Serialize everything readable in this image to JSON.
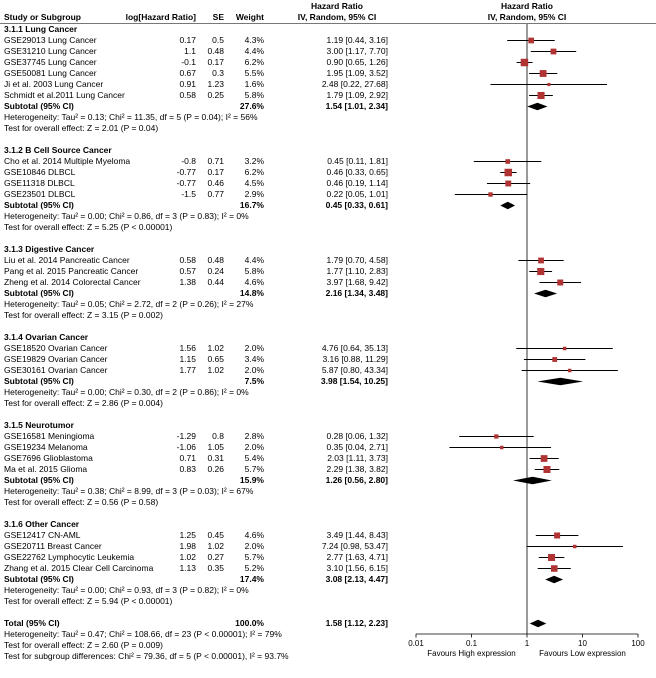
{
  "header": {
    "hazard_ratio": "Hazard Ratio",
    "study": "Study or Subgroup",
    "loghr": "log[Hazard Ratio]",
    "se": "SE",
    "weight": "Weight",
    "iv_random": "IV, Random, 95% CI"
  },
  "colors": {
    "marker": "#B03434",
    "ci_line": "#000000",
    "diamond": "#000000",
    "axis": "#000000"
  },
  "chart_data": {
    "type": "forest",
    "x_scale": "log",
    "xlim": [
      0.01,
      100
    ],
    "x_ticks": [
      "0.01",
      "0.1",
      "1",
      "10",
      "100"
    ],
    "x_tick_values": [
      0.01,
      0.1,
      1,
      10,
      100
    ],
    "favours_left": "Favours High expression",
    "favours_right": "Favours Low expression",
    "subgroups": [
      {
        "title": "3.1.1 Lung Cancer",
        "studies": [
          {
            "name": "GSE29013 Lung Cancer",
            "log_hr": "0.17",
            "se": "0.5",
            "weight": "4.3%",
            "ci_text": "1.19 [0.44, 3.16]",
            "hr": 1.19,
            "lo": 0.44,
            "hi": 3.16
          },
          {
            "name": "GSE31210 Lung Cancer",
            "log_hr": "1.1",
            "se": "0.48",
            "weight": "4.4%",
            "ci_text": "3.00 [1.17, 7.70]",
            "hr": 3.0,
            "lo": 1.17,
            "hi": 7.7
          },
          {
            "name": "GSE37745 Lung Cancer",
            "log_hr": "-0.1",
            "se": "0.17",
            "weight": "6.2%",
            "ci_text": "0.90 [0.65, 1.26]",
            "hr": 0.9,
            "lo": 0.65,
            "hi": 1.26
          },
          {
            "name": "GSE50081 Lung Cancer",
            "log_hr": "0.67",
            "se": "0.3",
            "weight": "5.5%",
            "ci_text": "1.95 [1.09, 3.52]",
            "hr": 1.95,
            "lo": 1.09,
            "hi": 3.52
          },
          {
            "name": "Ji et al. 2003 Lung Cancer",
            "log_hr": "0.91",
            "se": "1.23",
            "weight": "1.6%",
            "ci_text": "2.48 [0.22, 27.68]",
            "hr": 2.48,
            "lo": 0.22,
            "hi": 27.68
          },
          {
            "name": "Schmidt et al.2011 Lung Cancer",
            "log_hr": "0.58",
            "se": "0.25",
            "weight": "5.8%",
            "ci_text": "1.79 [1.09, 2.92]",
            "hr": 1.79,
            "lo": 1.09,
            "hi": 2.92
          }
        ],
        "subtotal": {
          "label": "Subtotal (95% CI)",
          "weight": "27.6%",
          "ci_text": "1.54 [1.01, 2.34]",
          "hr": 1.54,
          "lo": 1.01,
          "hi": 2.34
        },
        "heterogeneity": "Heterogeneity: Tau² = 0.13; Chi² = 11.35, df = 5 (P = 0.04); I² = 56%",
        "test": "Test for overall effect: Z = 2.01 (P = 0.04)"
      },
      {
        "title": "3.1.2 B Cell Source Cancer",
        "studies": [
          {
            "name": "Cho et al. 2014 Multiple Myeloma",
            "log_hr": "-0.8",
            "se": "0.71",
            "weight": "3.2%",
            "ci_text": "0.45 [0.11, 1.81]",
            "hr": 0.45,
            "lo": 0.11,
            "hi": 1.81
          },
          {
            "name": "GSE10846 DLBCL",
            "log_hr": "-0.77",
            "se": "0.17",
            "weight": "6.2%",
            "ci_text": "0.46 [0.33, 0.65]",
            "hr": 0.46,
            "lo": 0.33,
            "hi": 0.65
          },
          {
            "name": "GSE11318 DLBCL",
            "log_hr": "-0.77",
            "se": "0.46",
            "weight": "4.5%",
            "ci_text": "0.46 [0.19, 1.14]",
            "hr": 0.46,
            "lo": 0.19,
            "hi": 1.14
          },
          {
            "name": "GSE23501 DLBCL",
            "log_hr": "-1.5",
            "se": "0.77",
            "weight": "2.9%",
            "ci_text": "0.22 [0.05, 1.01]",
            "hr": 0.22,
            "lo": 0.05,
            "hi": 1.01
          }
        ],
        "subtotal": {
          "label": "Subtotal (95% CI)",
          "weight": "16.7%",
          "ci_text": "0.45 [0.33, 0.61]",
          "hr": 0.45,
          "lo": 0.33,
          "hi": 0.61
        },
        "heterogeneity": "Heterogeneity: Tau² = 0.00; Chi² = 0.86, df = 3 (P = 0.83); I² = 0%",
        "test": "Test for overall effect: Z = 5.25 (P < 0.00001)"
      },
      {
        "title": "3.1.3 Digestive Cancer",
        "studies": [
          {
            "name": "Liu et al. 2014 Pancreatic Cancer",
            "log_hr": "0.58",
            "se": "0.48",
            "weight": "4.4%",
            "ci_text": "1.79 [0.70, 4.58]",
            "hr": 1.79,
            "lo": 0.7,
            "hi": 4.58
          },
          {
            "name": "Pang et al. 2015 Pancreatic Cancer",
            "log_hr": "0.57",
            "se": "0.24",
            "weight": "5.8%",
            "ci_text": "1.77 [1.10, 2.83]",
            "hr": 1.77,
            "lo": 1.1,
            "hi": 2.83
          },
          {
            "name": "Zheng et al. 2014 Colorectal Cancer",
            "log_hr": "1.38",
            "se": "0.44",
            "weight": "4.6%",
            "ci_text": "3.97 [1.68, 9.42]",
            "hr": 3.97,
            "lo": 1.68,
            "hi": 9.42
          }
        ],
        "subtotal": {
          "label": "Subtotal (95% CI)",
          "weight": "14.8%",
          "ci_text": "2.16 [1.34, 3.48]",
          "hr": 2.16,
          "lo": 1.34,
          "hi": 3.48
        },
        "heterogeneity": "Heterogeneity: Tau² = 0.05; Chi² = 2.72, df = 2 (P = 0.26); I² = 27%",
        "test": "Test for overall effect: Z = 3.15 (P = 0.002)"
      },
      {
        "title": "3.1.4 Ovarian Cancer",
        "studies": [
          {
            "name": "GSE18520 Ovarian Cancer",
            "log_hr": "1.56",
            "se": "1.02",
            "weight": "2.0%",
            "ci_text": "4.76 [0.64, 35.13]",
            "hr": 4.76,
            "lo": 0.64,
            "hi": 35.13
          },
          {
            "name": "GSE19829 Ovarian Cancer",
            "log_hr": "1.15",
            "se": "0.65",
            "weight": "3.4%",
            "ci_text": "3.16 [0.88, 11.29]",
            "hr": 3.16,
            "lo": 0.88,
            "hi": 11.29
          },
          {
            "name": "GSE30161 Ovarian Cancer",
            "log_hr": "1.77",
            "se": "1.02",
            "weight": "2.0%",
            "ci_text": "5.87 [0.80, 43.34]",
            "hr": 5.87,
            "lo": 0.8,
            "hi": 43.34
          }
        ],
        "subtotal": {
          "label": "Subtotal (95% CI)",
          "weight": "7.5%",
          "ci_text": "3.98 [1.54, 10.25]",
          "hr": 3.98,
          "lo": 1.54,
          "hi": 10.25
        },
        "heterogeneity": "Heterogeneity: Tau² = 0.00; Chi² = 0.30, df = 2 (P = 0.86); I² = 0%",
        "test": "Test for overall effect: Z = 2.86 (P = 0.004)"
      },
      {
        "title": "3.1.5 Neurotumor",
        "studies": [
          {
            "name": "GSE16581 Meningioma",
            "log_hr": "-1.29",
            "se": "0.8",
            "weight": "2.8%",
            "ci_text": "0.28 [0.06, 1.32]",
            "hr": 0.28,
            "lo": 0.06,
            "hi": 1.32
          },
          {
            "name": "GSE19234 Melanoma",
            "log_hr": "-1.06",
            "se": "1.05",
            "weight": "2.0%",
            "ci_text": "0.35 [0.04, 2.71]",
            "hr": 0.35,
            "lo": 0.04,
            "hi": 2.71
          },
          {
            "name": "GSE7696 Glioblastoma",
            "log_hr": "0.71",
            "se": "0.31",
            "weight": "5.4%",
            "ci_text": "2.03 [1.11, 3.73]",
            "hr": 2.03,
            "lo": 1.11,
            "hi": 3.73
          },
          {
            "name": "Ma et al. 2015 Glioma",
            "log_hr": "0.83",
            "se": "0.26",
            "weight": "5.7%",
            "ci_text": "2.29 [1.38, 3.82]",
            "hr": 2.29,
            "lo": 1.38,
            "hi": 3.82
          }
        ],
        "subtotal": {
          "label": "Subtotal (95% CI)",
          "weight": "15.9%",
          "ci_text": "1.26 [0.56, 2.80]",
          "hr": 1.26,
          "lo": 0.56,
          "hi": 2.8
        },
        "heterogeneity": "Heterogeneity: Tau² = 0.38; Chi² = 8.99, df = 3 (P = 0.03); I² = 67%",
        "test": "Test for overall effect: Z = 0.56 (P = 0.58)"
      },
      {
        "title": "3.1.6 Other Cancer",
        "studies": [
          {
            "name": "GSE12417 CN-AML",
            "log_hr": "1.25",
            "se": "0.45",
            "weight": "4.6%",
            "ci_text": "3.49 [1.44, 8.43]",
            "hr": 3.49,
            "lo": 1.44,
            "hi": 8.43
          },
          {
            "name": "GSE20711 Breast Cancer",
            "log_hr": "1.98",
            "se": "1.02",
            "weight": "2.0%",
            "ci_text": "7.24 [0.98, 53.47]",
            "hr": 7.24,
            "lo": 0.98,
            "hi": 53.47
          },
          {
            "name": "GSE22762 Lymphocytic Leukemia",
            "log_hr": "1.02",
            "se": "0.27",
            "weight": "5.7%",
            "ci_text": "2.77 [1.63, 4.71]",
            "hr": 2.77,
            "lo": 1.63,
            "hi": 4.71
          },
          {
            "name": "Zhang et al. 2015 Clear Cell Carcinoma",
            "log_hr": "1.13",
            "se": "0.35",
            "weight": "5.2%",
            "ci_text": "3.10 [1.56, 6.15]",
            "hr": 3.1,
            "lo": 1.56,
            "hi": 6.15
          }
        ],
        "subtotal": {
          "label": "Subtotal (95% CI)",
          "weight": "17.4%",
          "ci_text": "3.08 [2.13, 4.47]",
          "hr": 3.08,
          "lo": 2.13,
          "hi": 4.47
        },
        "heterogeneity": "Heterogeneity: Tau² = 0.00; Chi² = 0.93, df = 3 (P = 0.82); I² = 0%",
        "test": "Test for overall effect: Z = 5.94 (P < 0.00001)"
      }
    ],
    "total": {
      "label": "Total (95% CI)",
      "weight": "100.0%",
      "ci_text": "1.58 [1.12, 2.23]",
      "hr": 1.58,
      "lo": 1.12,
      "hi": 2.23
    },
    "total_heterogeneity": "Heterogeneity: Tau² = 0.47; Chi² = 108.66, df = 23 (P < 0.00001); I² = 79%",
    "total_test": "Test for overall effect: Z = 2.60 (P = 0.009)",
    "subgroup_difference": "Test for subgroup differences: Chi² = 79.36, df = 5 (P < 0.00001), I² = 93.7%"
  }
}
